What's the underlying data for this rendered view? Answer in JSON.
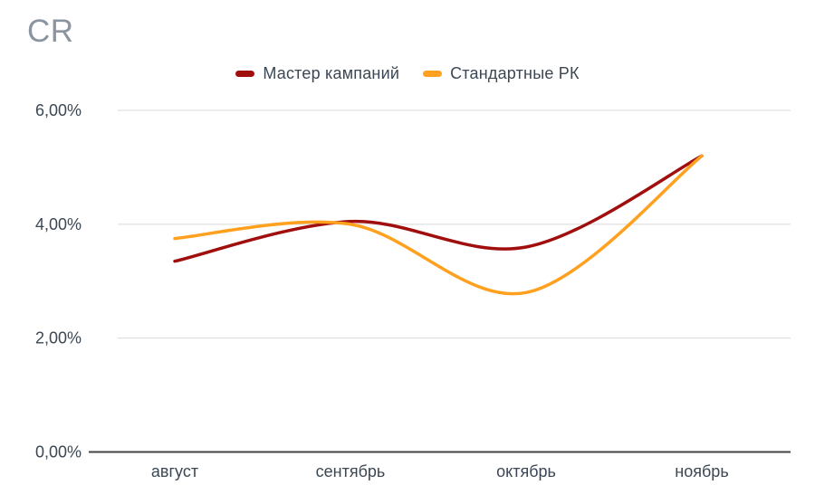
{
  "colors": {
    "background": "#FFFFFF",
    "title_text": "#8A95A1",
    "axis_text": "#3B4754",
    "gridline": "#D9D9D9",
    "axis_line": "#434343"
  },
  "chart_data": {
    "type": "line",
    "title": "CR",
    "categories": [
      "август",
      "сентябрь",
      "октябрь",
      "ноябрь"
    ],
    "series": [
      {
        "name": "Мастер кампаний",
        "color": "#A00E0E",
        "values": [
          3.35,
          4.05,
          3.6,
          5.2
        ]
      },
      {
        "name": "Стандартные РК",
        "color": "#FFA01E",
        "values": [
          3.75,
          4.0,
          2.8,
          5.2
        ]
      }
    ],
    "y_ticks": [
      {
        "value": 0,
        "label": "0,00%"
      },
      {
        "value": 2,
        "label": "2,00%"
      },
      {
        "value": 4,
        "label": "4,00%"
      },
      {
        "value": 6,
        "label": "6,00%"
      }
    ],
    "ylim": [
      0,
      6
    ],
    "value_unit": "%",
    "grid": "horizontal",
    "legend_position": "top-center",
    "line_smoothing": true
  }
}
